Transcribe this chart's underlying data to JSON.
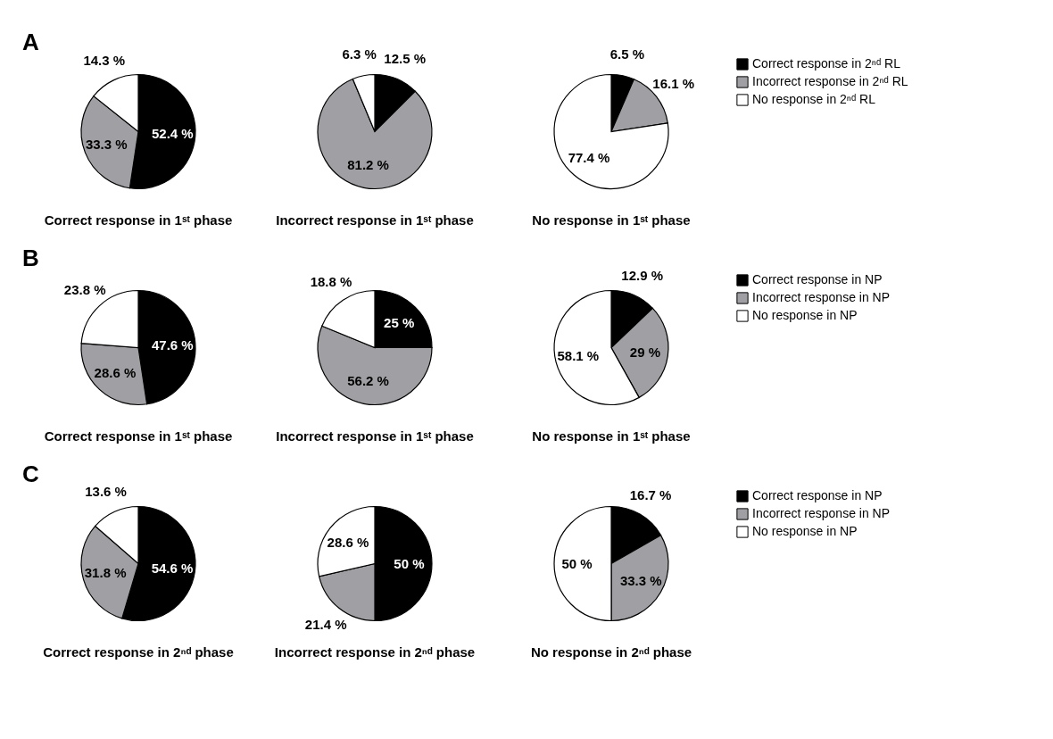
{
  "chart_data": [
    {
      "type": "pie",
      "xlabel": "Correct response in 1ˢᵗ phase",
      "annotations": [
        "A"
      ],
      "categories": [
        null,
        null,
        null
      ],
      "values": [
        52.4,
        33.3,
        14.3
      ],
      "colors": [
        "#000000",
        "#a0a0a4",
        "#ffffff"
      ],
      "value_labels": [
        "52.4 %",
        "33.3 %",
        "14.3 %"
      ]
    },
    {
      "type": "pie",
      "xlabel": "Incorrect response in 1ˢᵗ phase",
      "categories": [
        null,
        null,
        null
      ],
      "values": [
        12.5,
        81.2,
        6.3
      ],
      "colors": [
        "#000000",
        "#a0a0a4",
        "#ffffff"
      ],
      "value_labels": [
        "12.5 %",
        "81.2 %",
        "6.3 %"
      ]
    },
    {
      "type": "pie",
      "xlabel": "No response in 1ˢᵗ phase",
      "categories": [
        "Correct response in 2ⁿᵈ RL",
        "Incorrect response in 2ⁿᵈ RL",
        "No response in 2ⁿᵈ RL"
      ],
      "values": [
        6.5,
        16.1,
        77.4
      ],
      "colors": [
        "#000000",
        "#a0a0a4",
        "#ffffff"
      ],
      "value_labels": [
        "6.5 %",
        "16.1 %",
        "77.4 %"
      ],
      "legend": "right"
    },
    {
      "type": "pie",
      "xlabel": "Correct response in 1ˢᵗ phase",
      "annotations": [
        "B"
      ],
      "categories": [
        null,
        null,
        null
      ],
      "values": [
        47.6,
        28.6,
        23.8
      ],
      "colors": [
        "#000000",
        "#a0a0a4",
        "#ffffff"
      ],
      "value_labels": [
        "47.6 %",
        "28.6 %",
        "23.8 %"
      ]
    },
    {
      "type": "pie",
      "xlabel": "Incorrect response in 1ˢᵗ phase",
      "categories": [
        null,
        null,
        null
      ],
      "values": [
        25,
        56.2,
        18.8
      ],
      "colors": [
        "#000000",
        "#a0a0a4",
        "#ffffff"
      ],
      "value_labels": [
        "25 %",
        "56.2 %",
        "18.8 %"
      ]
    },
    {
      "type": "pie",
      "xlabel": "No response in 1ˢᵗ phase",
      "categories": [
        "Correct response in NP",
        "Incorrect response in NP",
        "No response in NP"
      ],
      "values": [
        12.9,
        29,
        58.1
      ],
      "colors": [
        "#000000",
        "#a0a0a4",
        "#ffffff"
      ],
      "value_labels": [
        "12.9 %",
        "29 %",
        "58.1 %"
      ],
      "legend": "right"
    },
    {
      "type": "pie",
      "xlabel": "Correct response in 2ⁿᵈ phase",
      "annotations": [
        "C"
      ],
      "categories": [
        null,
        null,
        null
      ],
      "values": [
        54.6,
        31.8,
        13.6
      ],
      "colors": [
        "#000000",
        "#a0a0a4",
        "#ffffff"
      ],
      "value_labels": [
        "54.6 %",
        "31.8 %",
        "13.6 %"
      ]
    },
    {
      "type": "pie",
      "xlabel": "Incorrect response in 2ⁿᵈ phase",
      "categories": [
        null,
        null,
        null
      ],
      "values": [
        50,
        21.4,
        28.6
      ],
      "colors": [
        "#000000",
        "#a0a0a4",
        "#ffffff"
      ],
      "value_labels": [
        "50 %",
        "21.4 %",
        "28.6 %"
      ]
    },
    {
      "type": "pie",
      "xlabel": "No response in 2ⁿᵈ phase",
      "categories": [
        "Correct response in NP",
        "Incorrect response in NP",
        "No response in NP"
      ],
      "values": [
        16.7,
        33.3,
        50
      ],
      "colors": [
        "#000000",
        "#a0a0a4",
        "#ffffff"
      ],
      "value_labels": [
        "16.7 %",
        "33.3 %",
        "50 %"
      ],
      "legend": "right"
    }
  ]
}
